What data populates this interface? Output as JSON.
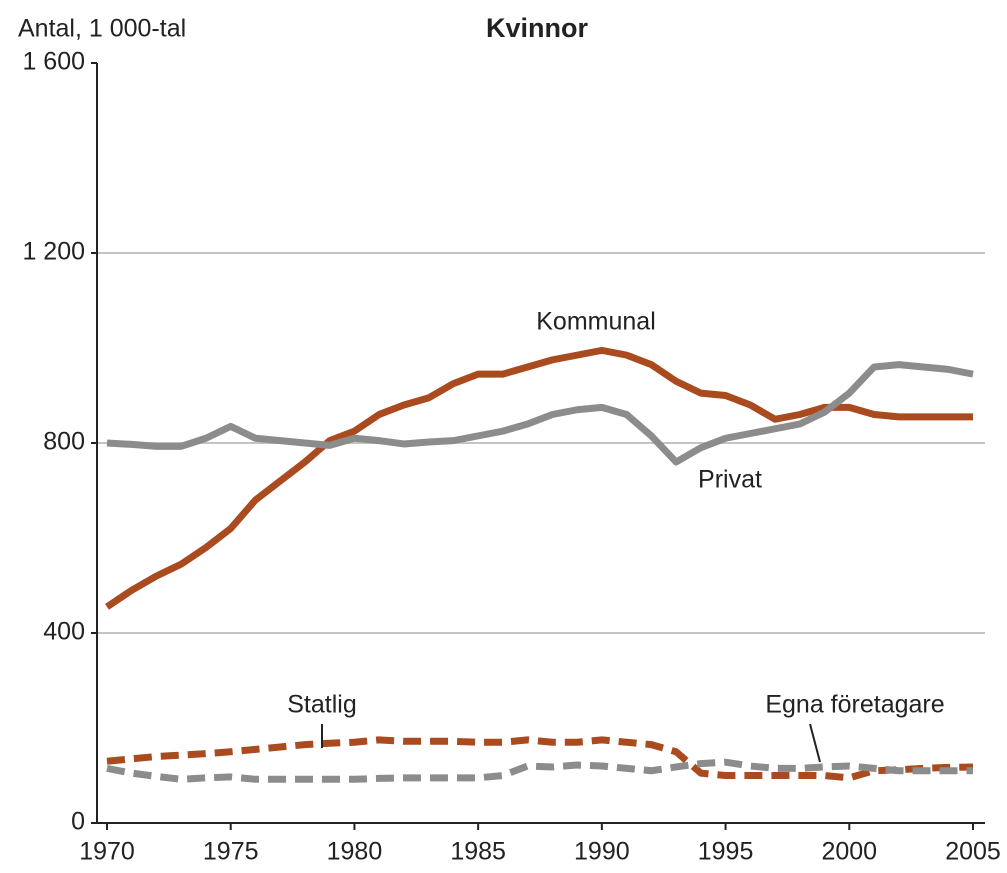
{
  "chart_data": {
    "type": "line",
    "title": "Kvinnor",
    "y_label": "Antal, 1 000-tal",
    "x": [
      1970,
      1971,
      1972,
      1973,
      1974,
      1975,
      1976,
      1977,
      1978,
      1979,
      1980,
      1981,
      1982,
      1983,
      1984,
      1985,
      1986,
      1987,
      1988,
      1989,
      1990,
      1991,
      1992,
      1993,
      1994,
      1995,
      1996,
      1997,
      1998,
      1999,
      2000,
      2001,
      2002,
      2003,
      2004,
      2005
    ],
    "series": [
      {
        "name": "Kommunal",
        "color": "#a94a1f",
        "dashed": false,
        "values": [
          455,
          490,
          520,
          545,
          580,
          620,
          680,
          720,
          760,
          805,
          825,
          860,
          880,
          895,
          925,
          945,
          945,
          960,
          975,
          985,
          995,
          985,
          965,
          930,
          905,
          900,
          880,
          850,
          860,
          875,
          875,
          860,
          855,
          855,
          855,
          855
        ]
      },
      {
        "name": "Privat",
        "color": "#8c8c8c",
        "dashed": false,
        "values": [
          800,
          797,
          793,
          793,
          810,
          835,
          810,
          805,
          800,
          795,
          810,
          805,
          798,
          802,
          805,
          815,
          825,
          840,
          860,
          870,
          875,
          860,
          815,
          760,
          790,
          810,
          820,
          830,
          840,
          865,
          905,
          960,
          965,
          960,
          955,
          945
        ]
      },
      {
        "name": "Statlig",
        "color": "#a94a1f",
        "dashed": true,
        "values": [
          130,
          135,
          140,
          143,
          146,
          150,
          155,
          160,
          165,
          168,
          170,
          175,
          172,
          172,
          172,
          170,
          170,
          175,
          170,
          170,
          175,
          170,
          165,
          150,
          105,
          100,
          100,
          100,
          100,
          100,
          95,
          110,
          112,
          115,
          117,
          118
        ]
      },
      {
        "name": "Egna företagare",
        "color": "#8c8c8c",
        "dashed": true,
        "values": [
          115,
          105,
          98,
          92,
          95,
          97,
          92,
          92,
          92,
          92,
          92,
          94,
          95,
          95,
          95,
          95,
          100,
          120,
          118,
          122,
          120,
          115,
          110,
          118,
          125,
          128,
          120,
          115,
          115,
          118,
          120,
          115,
          110,
          110,
          110,
          110
        ]
      }
    ],
    "xlim": [
      1970,
      2005
    ],
    "ylim": [
      0,
      1600
    ],
    "xticks": [
      1970,
      1975,
      1980,
      1985,
      1990,
      1995,
      2000,
      2005
    ],
    "yticks": [
      0,
      400,
      800,
      {
        "value": 1200,
        "label": "1 200"
      },
      {
        "value": 1600,
        "label": "1 600"
      }
    ],
    "grid": true
  }
}
